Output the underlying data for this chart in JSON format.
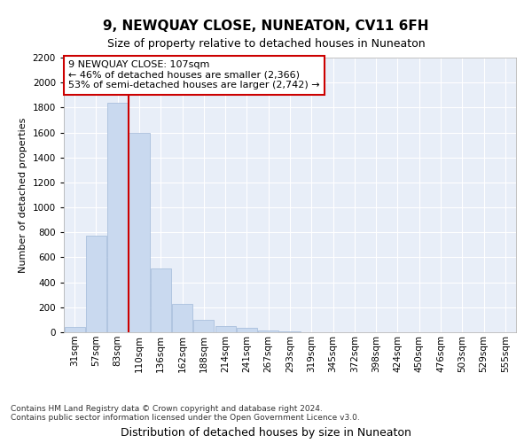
{
  "title": "9, NEWQUAY CLOSE, NUNEATON, CV11 6FH",
  "subtitle": "Size of property relative to detached houses in Nuneaton",
  "xlabel": "Distribution of detached houses by size in Nuneaton",
  "ylabel": "Number of detached properties",
  "footnote1": "Contains HM Land Registry data © Crown copyright and database right 2024.",
  "footnote2": "Contains public sector information licensed under the Open Government Licence v3.0.",
  "annotation_line1": "9 NEWQUAY CLOSE: 107sqm",
  "annotation_line2": "← 46% of detached houses are smaller (2,366)",
  "annotation_line3": "53% of semi-detached houses are larger (2,742) →",
  "categories": [
    "31sqm",
    "57sqm",
    "83sqm",
    "110sqm",
    "136sqm",
    "162sqm",
    "188sqm",
    "214sqm",
    "241sqm",
    "267sqm",
    "293sqm",
    "319sqm",
    "345sqm",
    "372sqm",
    "398sqm",
    "424sqm",
    "450sqm",
    "476sqm",
    "503sqm",
    "529sqm",
    "555sqm"
  ],
  "values": [
    40,
    775,
    1840,
    1600,
    510,
    230,
    100,
    50,
    35,
    15,
    5,
    0,
    0,
    0,
    0,
    0,
    0,
    0,
    0,
    0,
    0
  ],
  "bar_color": "#c9d9ef",
  "bar_edge_color": "#a0b8d8",
  "redline_index": 2.5,
  "redline_color": "#cc0000",
  "ylim": [
    0,
    2200
  ],
  "yticks": [
    0,
    200,
    400,
    600,
    800,
    1000,
    1200,
    1400,
    1600,
    1800,
    2000,
    2200
  ],
  "plot_bg_color": "#e8eef8",
  "title_fontsize": 11,
  "subtitle_fontsize": 9,
  "ylabel_fontsize": 8,
  "xlabel_fontsize": 9,
  "tick_fontsize": 7.5,
  "annotation_fontsize": 8,
  "footnote_fontsize": 6.5
}
